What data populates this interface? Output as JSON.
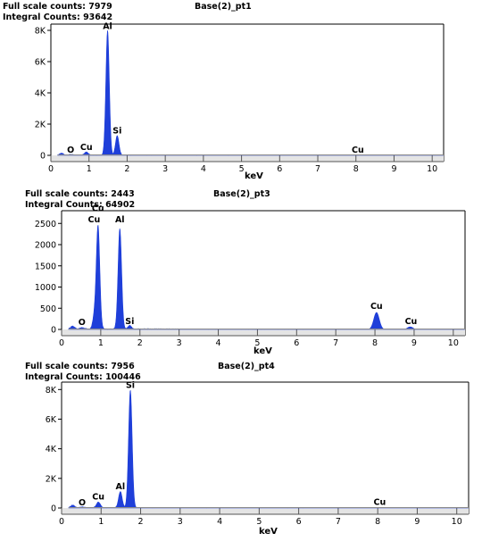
{
  "chart_data": [
    {
      "type": "spectrum",
      "header_left_1": "Full scale counts: 7979",
      "header_left_2": "Integral Counts: 93642",
      "title": "Base(2)_pt1",
      "xlabel": "keV",
      "xlim": [
        0,
        10.3
      ],
      "ylim": [
        0,
        8400
      ],
      "x_ticks": [
        0,
        1,
        2,
        3,
        4,
        5,
        6,
        7,
        8,
        9,
        10
      ],
      "y_ticks": [
        {
          "value": 0,
          "label": "0"
        },
        {
          "value": 2000,
          "label": "2K"
        },
        {
          "value": 4000,
          "label": "4K"
        },
        {
          "value": 6000,
          "label": "6K"
        },
        {
          "value": 8000,
          "label": "8K"
        }
      ],
      "peaks": [
        {
          "x": 0.28,
          "y": 130,
          "w": 0.05
        },
        {
          "x": 0.52,
          "y": 50,
          "w": 0.06
        },
        {
          "x": 0.93,
          "y": 200,
          "w": 0.05
        },
        {
          "x": 1.487,
          "y": 7979,
          "w": 0.045
        },
        {
          "x": 1.74,
          "y": 1250,
          "w": 0.045
        }
      ],
      "noise": 30,
      "labels": [
        {
          "text": "O",
          "x": 0.52,
          "y": 180
        },
        {
          "text": "Cu",
          "x": 0.93,
          "y": 330
        },
        {
          "text": "Al",
          "x": 1.487,
          "y": 8080
        },
        {
          "text": "Si",
          "x": 1.74,
          "y": 1390
        },
        {
          "text": "Cu",
          "x": 8.05,
          "y": 180
        }
      ]
    },
    {
      "type": "spectrum",
      "header_left_1": "Full scale counts: 2443",
      "header_left_2": "Integral Counts: 64902",
      "title": "Base(2)_pt3",
      "xlabel": "keV",
      "xlim": [
        0,
        10.3
      ],
      "ylim": [
        0,
        2800
      ],
      "x_ticks": [
        0,
        1,
        2,
        3,
        4,
        5,
        6,
        7,
        8,
        9,
        10
      ],
      "y_ticks": [
        {
          "value": 0,
          "label": "0"
        },
        {
          "value": 500,
          "label": "500"
        },
        {
          "value": 1000,
          "label": "1000"
        },
        {
          "value": 1500,
          "label": "1500"
        },
        {
          "value": 2000,
          "label": "2000"
        },
        {
          "value": 2500,
          "label": "2500"
        }
      ],
      "peaks": [
        {
          "x": 0.28,
          "y": 70,
          "w": 0.05
        },
        {
          "x": 0.52,
          "y": 30,
          "w": 0.06
        },
        {
          "x": 0.83,
          "y": 260,
          "w": 0.04
        },
        {
          "x": 0.93,
          "y": 2443,
          "w": 0.045
        },
        {
          "x": 1.487,
          "y": 2380,
          "w": 0.045
        },
        {
          "x": 1.74,
          "y": 80,
          "w": 0.045
        },
        {
          "x": 8.04,
          "y": 400,
          "w": 0.07
        },
        {
          "x": 8.9,
          "y": 60,
          "w": 0.07
        }
      ],
      "noise": 22,
      "labels": [
        {
          "text": "O",
          "x": 0.52,
          "y": 110
        },
        {
          "text": "Cu",
          "x": 0.93,
          "y": 2790
        },
        {
          "text": "Cu",
          "x": 0.83,
          "y": 2530
        },
        {
          "text": "Al",
          "x": 1.487,
          "y": 2530
        },
        {
          "text": "Si",
          "x": 1.74,
          "y": 130
        },
        {
          "text": "Cu",
          "x": 8.04,
          "y": 480
        },
        {
          "text": "Cu",
          "x": 8.92,
          "y": 130
        }
      ]
    },
    {
      "type": "spectrum",
      "header_left_1": "Full scale counts: 7956",
      "header_left_2": "Integral Counts: 100446",
      "title": "Base(2)_pt4",
      "xlabel": "keV",
      "xlim": [
        0,
        10.3
      ],
      "ylim": [
        0,
        8500
      ],
      "x_ticks": [
        0,
        1,
        2,
        3,
        4,
        5,
        6,
        7,
        8,
        9,
        10
      ],
      "y_ticks": [
        {
          "value": 0,
          "label": "0"
        },
        {
          "value": 2000,
          "label": "2K"
        },
        {
          "value": 4000,
          "label": "4K"
        },
        {
          "value": 6000,
          "label": "6K"
        },
        {
          "value": 8000,
          "label": "8K"
        }
      ],
      "peaks": [
        {
          "x": 0.28,
          "y": 180,
          "w": 0.05
        },
        {
          "x": 0.52,
          "y": 60,
          "w": 0.06
        },
        {
          "x": 0.93,
          "y": 380,
          "w": 0.05
        },
        {
          "x": 1.487,
          "y": 1100,
          "w": 0.045
        },
        {
          "x": 1.74,
          "y": 7956,
          "w": 0.045
        }
      ],
      "noise": 35,
      "labels": [
        {
          "text": "O",
          "x": 0.52,
          "y": 180
        },
        {
          "text": "Cu",
          "x": 0.93,
          "y": 560
        },
        {
          "text": "Al",
          "x": 1.487,
          "y": 1280
        },
        {
          "text": "Si",
          "x": 1.74,
          "y": 8100
        },
        {
          "text": "Cu",
          "x": 8.05,
          "y": 200
        }
      ]
    }
  ],
  "colors": {
    "fill": "#1f3fd9",
    "baseline": "#8a8a8a",
    "axis": "#000000",
    "band": "#e4e4e4"
  }
}
